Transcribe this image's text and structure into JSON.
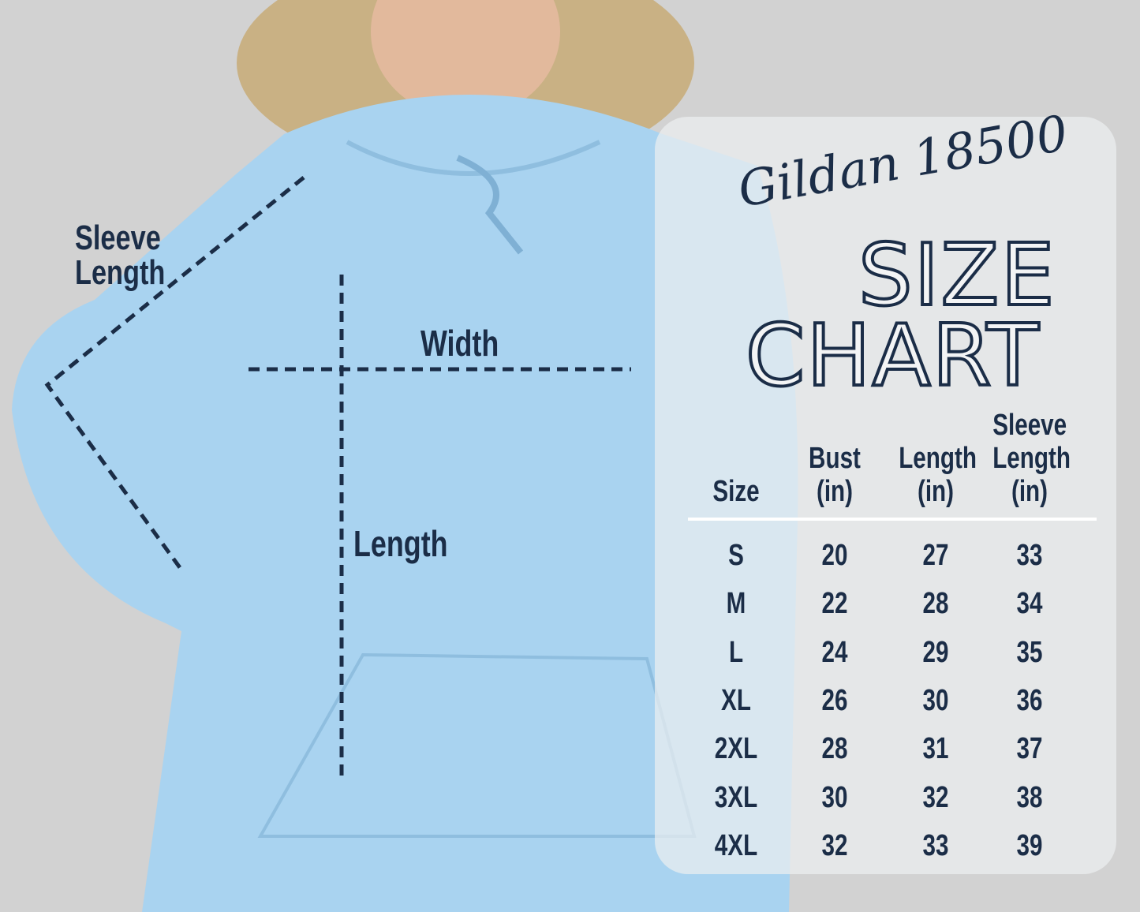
{
  "colors": {
    "background": "#d2d2d2",
    "hoodie": "#a9d3f0",
    "text": "#1b2d47",
    "panel": "#eceef0"
  },
  "annotations": {
    "sleeve_length": [
      "Sleeve",
      "Length"
    ],
    "width": "Width",
    "length": "Length"
  },
  "panel": {
    "brand": "Gildan 18500",
    "title_line1": "SIZE",
    "title_line2": "CHART",
    "headers": [
      [
        "Size"
      ],
      [
        "Bust",
        "(in)"
      ],
      [
        "Length",
        "(in)"
      ],
      [
        "Sleeve",
        "Length",
        "(in)"
      ]
    ],
    "rows": [
      [
        "S",
        "20",
        "27",
        "33"
      ],
      [
        "M",
        "22",
        "28",
        "34"
      ],
      [
        "L",
        "24",
        "29",
        "35"
      ],
      [
        "XL",
        "26",
        "30",
        "36"
      ],
      [
        "2XL",
        "28",
        "31",
        "37"
      ],
      [
        "3XL",
        "30",
        "32",
        "38"
      ],
      [
        "4XL",
        "32",
        "33",
        "39"
      ]
    ]
  }
}
